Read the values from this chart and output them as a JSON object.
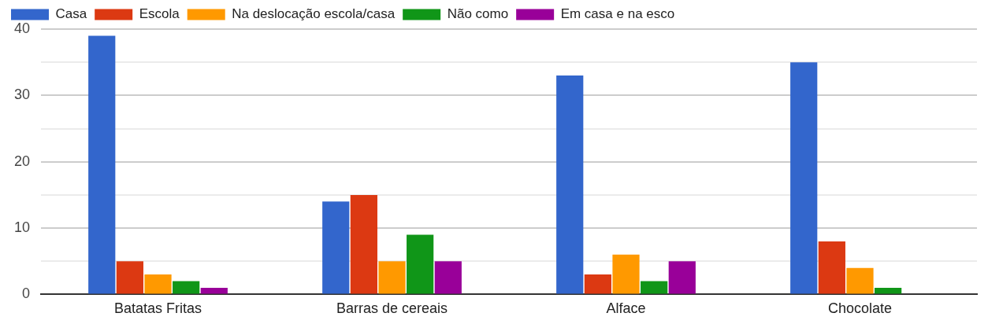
{
  "chart_data": {
    "type": "bar",
    "categories": [
      "Batatas Fritas",
      "Barras de cereais",
      "Alface",
      "Chocolate"
    ],
    "series": [
      {
        "name": "Casa",
        "color": "#3366cc",
        "values": [
          39,
          14,
          33,
          35
        ]
      },
      {
        "name": "Escola",
        "color": "#dc3912",
        "values": [
          5,
          15,
          3,
          8
        ]
      },
      {
        "name": "Na deslocação escola/casa",
        "color": "#ff9900",
        "values": [
          3,
          5,
          6,
          4
        ]
      },
      {
        "name": "Não como",
        "color": "#109618",
        "values": [
          2,
          9,
          2,
          1
        ]
      },
      {
        "name": "Em casa e na esco",
        "color": "#990099",
        "values": [
          1,
          5,
          5,
          null
        ]
      }
    ],
    "ylim": [
      0,
      40
    ],
    "yticks": [
      0,
      {
        "value": 5,
        "label": null
      },
      10,
      {
        "value": 15,
        "label": null
      },
      20,
      {
        "value": 25,
        "label": null
      },
      30,
      {
        "value": 35,
        "label": null
      },
      40
    ],
    "grid": "y",
    "legend": "top"
  }
}
